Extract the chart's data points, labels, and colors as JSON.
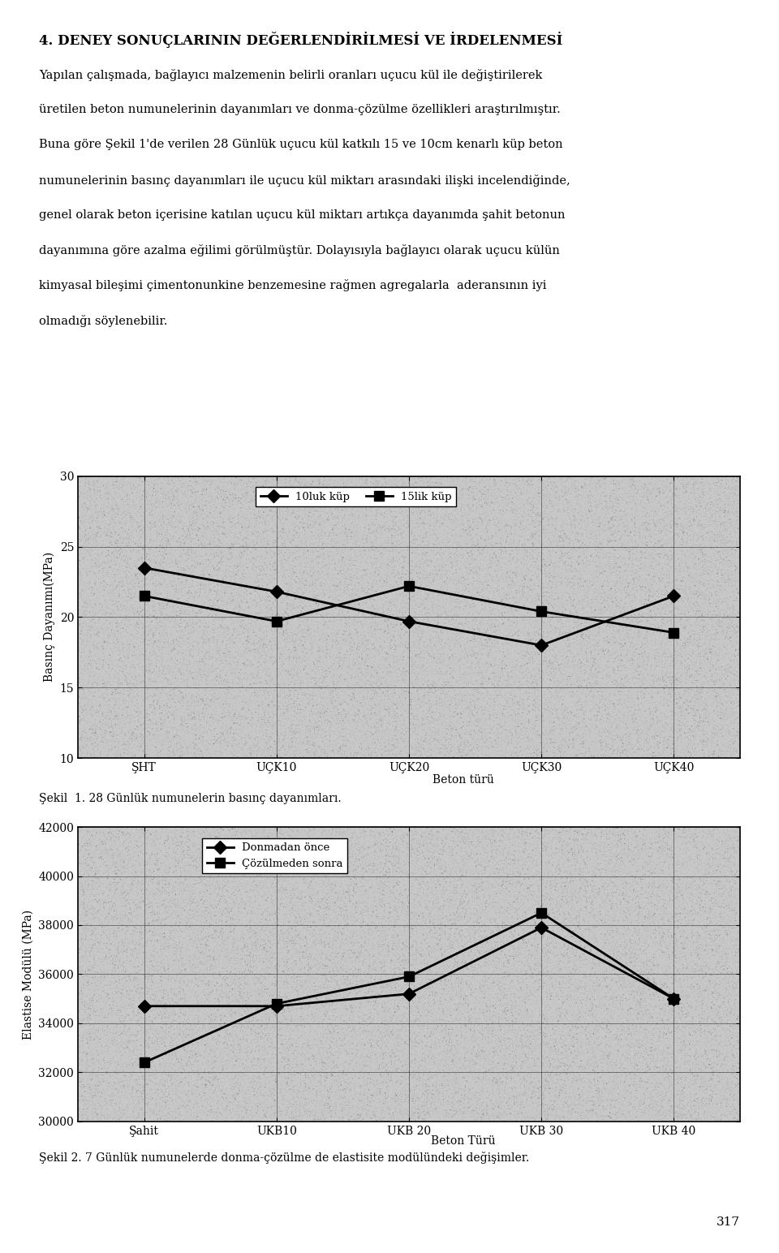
{
  "title": "4. DENEY SONUÇLARININ DEĞERLENDİRİLMESİ VE İRDELENMESİ",
  "body_text": "Yapılan çalışmada, bağlayıcı malzemenin belirli oranları uçucu kül ile değiştirilerek\nüretilen beton numunelerinin dayanımları ve donma-çözülme özellikleri araştırılmıştır.\nBuna göre Şekil 1'de verilen 28 Günlük uçucu kül katkılı 15 ve 10cm kenarlı küp beton\nnumunelerinin basınç dayanımları ile uçucu kül miktarı arasındaki ilişki incelendiğinde,\ngenel olarak beton içerisine katılan uçucu kül miktarı artıkça dayanımda şahit betonun\ndayanımına göre azalma eğilimi görülmüştür. Dolayısıyla bağlayıcı olarak uçucu külün\nkimyasal bileşimi çimentonunkine benzemesine rağmen agregalarla  aderansının iyi\nolmadığı söylenebilir.",
  "chart1": {
    "x_labels": [
      "ŞHT",
      "UÇK10",
      "UÇK20",
      "UÇK30",
      "UÇK40"
    ],
    "x_label": "Beton türü",
    "y_label": "Basınç Dayanımı(MPa)",
    "y_min": 10,
    "y_max": 30,
    "y_ticks": [
      10,
      15,
      20,
      25,
      30
    ],
    "series1_label": "10luk küp",
    "series1_values": [
      23.5,
      21.8,
      19.7,
      18.0,
      21.5
    ],
    "series2_label": "15lik küp",
    "series2_values": [
      21.5,
      19.7,
      22.2,
      20.4,
      18.9
    ],
    "caption": "Şekil  1. 28 Günlük numunelerin basınç dayanımları."
  },
  "chart2": {
    "x_labels": [
      "Şahit",
      "UKB10",
      "UKB 20",
      "UKB 30",
      "UKB 40"
    ],
    "x_label": "Beton Türü",
    "y_label": "Elastise Modülü (MPa)",
    "y_min": 30000,
    "y_max": 42000,
    "y_ticks": [
      30000,
      32000,
      34000,
      36000,
      38000,
      40000,
      42000
    ],
    "series1_label": "Donmadan önce",
    "series1_values": [
      34700,
      34700,
      35200,
      37900,
      35000
    ],
    "series2_label": "Çözülmeden sonra",
    "series2_values": [
      32400,
      34800,
      35900,
      38500,
      35000
    ],
    "caption": "Şekil 2. 7 Günlük numunelerde donma-çözülme de elastisite modülündeki değişimler."
  },
  "page_number": "317",
  "background_color": "#ffffff",
  "text_color": "#000000"
}
